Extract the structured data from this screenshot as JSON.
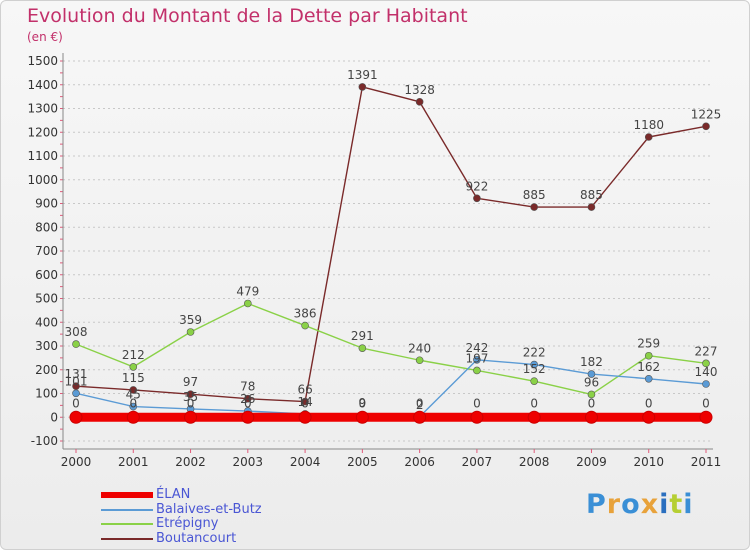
{
  "title": "Evolution du Montant de la Dette par Habitant",
  "subtitle": "(en €)",
  "logo": {
    "text": "Proxiti",
    "letter_colors": [
      "#3a8fd6",
      "#e8a23a",
      "#3a8fd6",
      "#e8a23a",
      "#2a6fbf",
      "#b6cf33",
      "#3a8fd6"
    ]
  },
  "chart_data": {
    "type": "line",
    "title": "Evolution du Montant de la Dette par Habitant",
    "subtitle": "(en €)",
    "x": [
      "2000",
      "2001",
      "2002",
      "2003",
      "2004",
      "2005",
      "2006",
      "2007",
      "2008",
      "2009",
      "2010",
      "2011"
    ],
    "yticks": [
      -100,
      0,
      100,
      200,
      300,
      400,
      500,
      600,
      700,
      800,
      900,
      1000,
      1100,
      1200,
      1300,
      1400,
      1500
    ],
    "ylim": [
      -100,
      1500
    ],
    "grid": "horizontal dotted",
    "legend_position": "bottom-left",
    "series": [
      {
        "name": "ÉLAN",
        "color": "#ee0000",
        "style": "thick",
        "values": [
          0,
          0,
          0,
          0,
          0,
          0,
          0,
          0,
          0,
          0,
          0,
          0
        ],
        "labels": [
          "0",
          "0",
          "0",
          "0",
          "0",
          "0",
          "0",
          "0",
          "0",
          "0",
          "0",
          "0"
        ]
      },
      {
        "name": "Balaives-et-Butz",
        "color": "#5b9bd5",
        "style": "thin",
        "values": [
          101,
          45,
          35,
          26,
          14,
          9,
          2,
          242,
          222,
          182,
          162,
          140
        ],
        "labels": [
          "101",
          "45",
          "35",
          "26",
          "14",
          "9",
          "2",
          "242",
          "222",
          "182",
          "162",
          "140"
        ]
      },
      {
        "name": "Etrépigny",
        "color": "#8ad147",
        "style": "thin",
        "values": [
          308,
          212,
          359,
          479,
          386,
          291,
          240,
          197,
          152,
          96,
          259,
          227
        ],
        "labels": [
          "308",
          "212",
          "359",
          "479",
          "386",
          "291",
          "240",
          "197",
          "152",
          "96",
          "259",
          "227"
        ]
      },
      {
        "name": "Boutancourt",
        "color": "#7a2a2a",
        "style": "thin",
        "values": [
          131,
          115,
          97,
          78,
          66,
          1391,
          1328,
          922,
          885,
          885,
          1180,
          1225
        ],
        "labels": [
          "131",
          "115",
          "97",
          "78",
          "66",
          "1391",
          "1328",
          "922",
          "885",
          "885",
          "1180",
          "1225"
        ]
      }
    ]
  }
}
